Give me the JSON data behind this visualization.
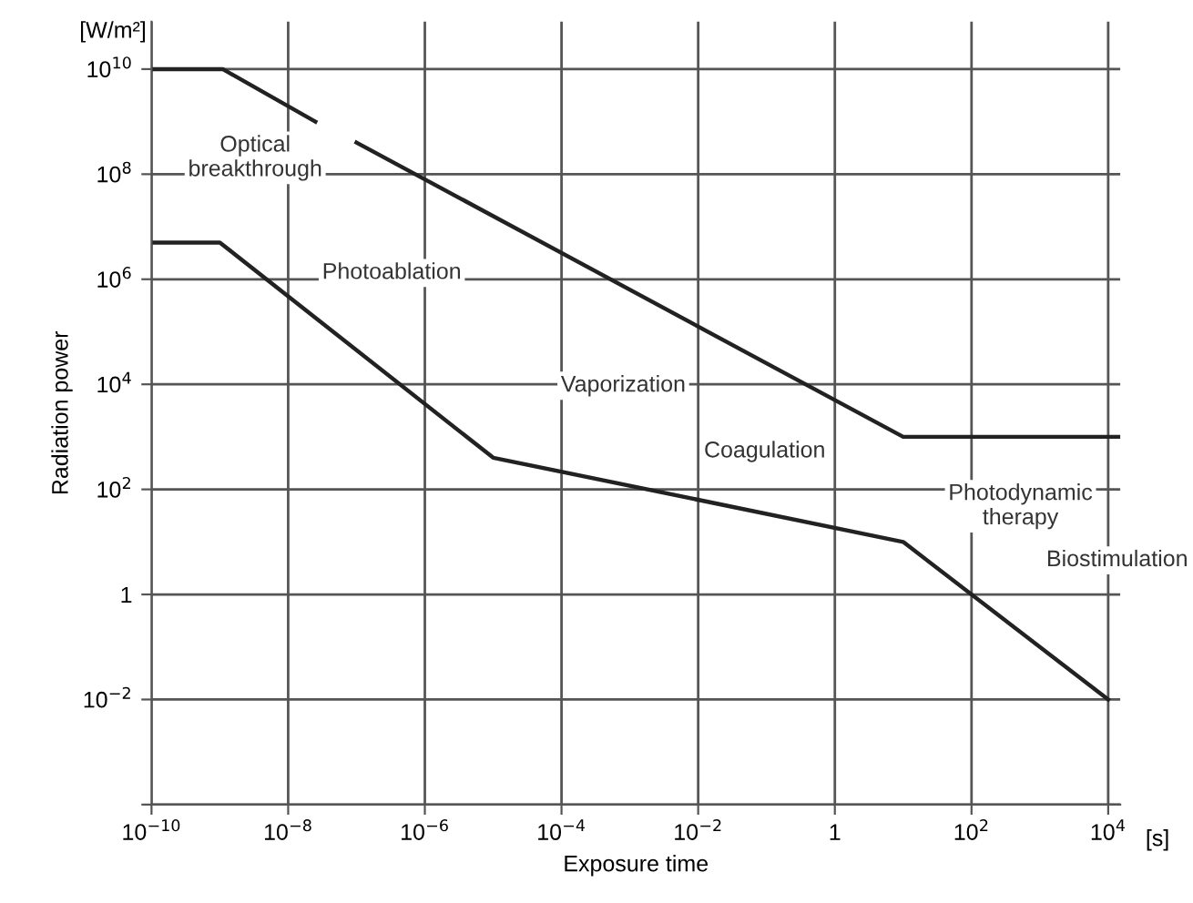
{
  "chart_data": {
    "type": "line",
    "xlabel": "Exposure time",
    "ylabel": "Radiation power",
    "log": "xy",
    "grid": true,
    "marker": "none",
    "line_style": "solid",
    "xlim": [
      1e-10,
      15000
    ],
    "ylim": [
      0.0001,
      80000000000
    ],
    "xticks": [
      {
        "value": 1e-10,
        "label": "10$^{−10}$"
      },
      {
        "value": 1e-08,
        "label": "10$^{−8}$"
      },
      {
        "value": 1e-06,
        "label": "10$^{−6}$"
      },
      {
        "value": 0.0001,
        "label": "10$^{−4}$"
      },
      {
        "value": 0.01,
        "label": "10$^{−2}$"
      },
      1,
      {
        "value": 100,
        "label": "10$^{2}$"
      },
      {
        "value": 10000,
        "label": "10$^{4}$"
      }
    ],
    "yticks": [
      {
        "value": 0.0001,
        "label": null
      },
      {
        "value": 0.01,
        "label": "10$^{−2}$"
      },
      1,
      {
        "value": 100,
        "label": "10$^{2}$"
      },
      {
        "value": 10000,
        "label": "10$^{4}$"
      },
      {
        "value": 1000000,
        "label": "10$^{6}$"
      },
      {
        "value": 100000000,
        "label": "10$^{8}$"
      },
      {
        "value": 10000000000,
        "label": "10$^{10}$"
      }
    ],
    "series": [
      {
        "color": "#222222",
        "x": [
          1e-10,
          1.1e-09,
          2.5e-08,
          null,
          1e-07,
          10,
          15000
        ],
        "values": [
          10000000000,
          10000000000,
          1000000000,
          null,
          400000000,
          1000,
          1000
        ]
      },
      {
        "color": "#222222",
        "x": [
          1e-10,
          1e-09,
          1e-05,
          10,
          10000
        ],
        "values": [
          5000000,
          5000000,
          400,
          10,
          0.01
        ]
      }
    ],
    "annotations": [
      "[s]",
      "[W/m²]",
      "Optical\nbreakthrough",
      "Photoablation",
      "Vaporization",
      "Coagulation",
      "Photodynamic\ntherapy",
      "Biostimulation"
    ]
  }
}
